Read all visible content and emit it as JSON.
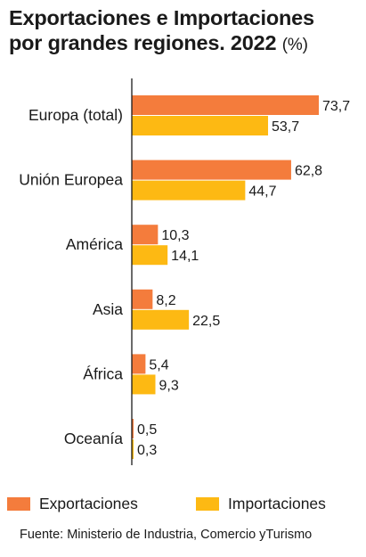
{
  "header": {
    "title_line1": "Exportaciones e Importaciones",
    "title_line2": "por grandes regiones. 2022",
    "unit": "(%)"
  },
  "colors": {
    "exportaciones": "#f47c3c",
    "importaciones": "#fdb913",
    "axis": "#1a1a1a"
  },
  "chart_data": {
    "type": "bar",
    "orientation": "horizontal",
    "title": "Exportaciones e Importaciones por grandes regiones. 2022 (%)",
    "categories": [
      "Europa (total)",
      "Unión Europea",
      "América",
      "Asia",
      "África",
      "Oceanía"
    ],
    "series": [
      {
        "name": "Exportaciones",
        "values": [
          73.7,
          62.8,
          10.3,
          8.2,
          5.4,
          0.5
        ],
        "labels": [
          "73,7",
          "62,8",
          "10,3",
          "8,2",
          "5,4",
          "0,5"
        ]
      },
      {
        "name": "Importaciones",
        "values": [
          53.7,
          44.7,
          14.1,
          22.5,
          9.3,
          0.3
        ],
        "labels": [
          "53,7",
          "44,7",
          "14,1",
          "22,5",
          "9,3",
          "0,3"
        ]
      }
    ],
    "xlim": [
      0,
      73.7
    ],
    "grid": false,
    "legend_position": "bottom"
  },
  "legend": {
    "items": [
      {
        "label": "Exportaciones",
        "color": "#f47c3c"
      },
      {
        "label": "Importaciones",
        "color": "#fdb913"
      }
    ]
  },
  "source": "Fuente: Ministerio de Industria, Comercio yTurismo"
}
